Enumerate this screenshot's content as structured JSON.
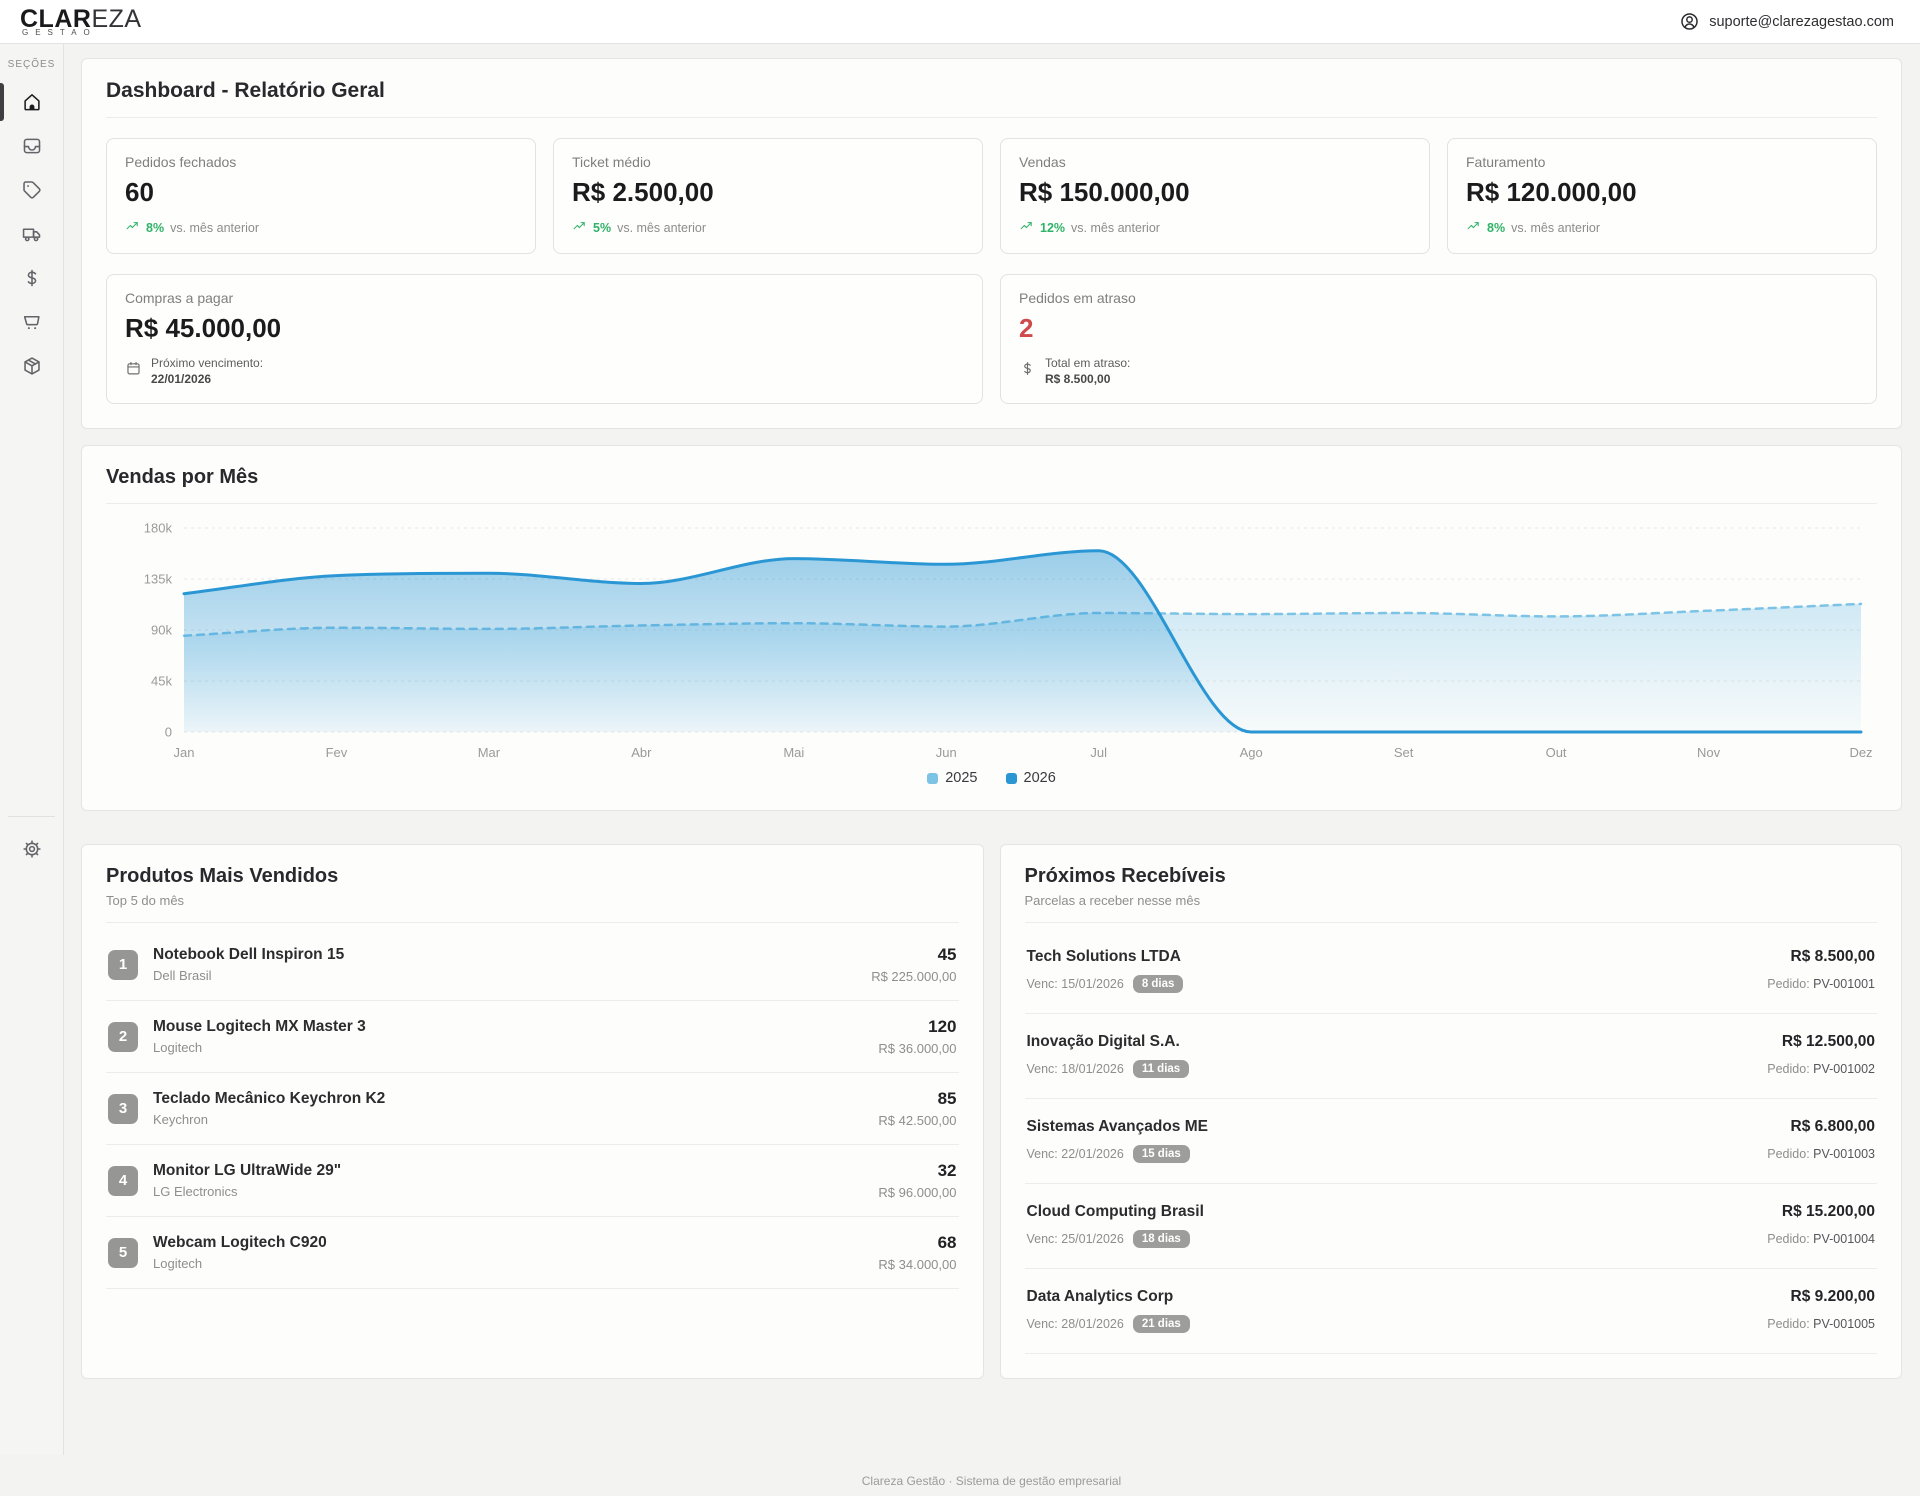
{
  "header": {
    "logo_bold": "CLAR",
    "logo_light": "EZA",
    "logo_sub": "GESTAO",
    "user_email": "suporte@clarezagestao.com"
  },
  "sidebar": {
    "section_label": "SEÇÕES",
    "items": [
      {
        "icon": "home",
        "active": true
      },
      {
        "icon": "inbox",
        "active": false
      },
      {
        "icon": "tag",
        "active": false
      },
      {
        "icon": "truck",
        "active": false
      },
      {
        "icon": "dollar",
        "active": false
      },
      {
        "icon": "cart",
        "active": false
      },
      {
        "icon": "package",
        "active": false
      }
    ],
    "footer_icon": "gear"
  },
  "page": {
    "title": "Dashboard - Relatório Geral"
  },
  "stats": [
    {
      "label": "Pedidos fechados",
      "value": "60",
      "trend_value": "8%",
      "trend_label": "vs. mês anterior"
    },
    {
      "label": "Ticket médio",
      "value": "R$ 2.500,00",
      "trend_value": "5%",
      "trend_label": "vs. mês anterior"
    },
    {
      "label": "Vendas",
      "value": "R$ 150.000,00",
      "trend_value": "12%",
      "trend_label": "vs. mês anterior"
    },
    {
      "label": "Faturamento",
      "value": "R$ 120.000,00",
      "trend_value": "8%",
      "trend_label": "vs. mês anterior"
    }
  ],
  "stats_secondary": [
    {
      "label": "Compras a pagar",
      "value": "R$ 45.000,00",
      "accent": "dark",
      "icon": "calendar",
      "info_label": "Próximo vencimento:",
      "info_value": "22/01/2026"
    },
    {
      "label": "Pedidos em atraso",
      "value": "2",
      "accent": "red",
      "icon": "dollar",
      "info_label": "Total em atraso:",
      "info_value": "R$ 8.500,00"
    }
  ],
  "chart_data": {
    "type": "area",
    "title": "Vendas por Mês",
    "categories": [
      "Jan",
      "Fev",
      "Mar",
      "Abr",
      "Mai",
      "Jun",
      "Jul",
      "Ago",
      "Set",
      "Out",
      "Nov",
      "Dez"
    ],
    "series": [
      {
        "name": "2025",
        "style": "dashed",
        "color": "#7cc3e6",
        "values": [
          85000,
          92000,
          91000,
          94000,
          96000,
          93000,
          105000,
          104000,
          105000,
          102000,
          107000,
          113000
        ]
      },
      {
        "name": "2026",
        "style": "solid",
        "color": "#2a97d4",
        "values": [
          122000,
          138000,
          140000,
          131000,
          153000,
          148000,
          160000,
          0,
          0,
          0,
          0,
          0
        ]
      }
    ],
    "ylim": [
      0,
      180000
    ],
    "yticks": [
      0,
      45000,
      90000,
      135000,
      180000
    ],
    "ytick_labels": [
      "0",
      "45k",
      "90k",
      "135k",
      "180k"
    ],
    "grid": true,
    "legend_position": "bottom"
  },
  "products": {
    "title": "Produtos Mais Vendidos",
    "subtitle": "Top 5 do mês",
    "items": [
      {
        "rank": "1",
        "name": "Notebook Dell Inspiron 15",
        "brand": "Dell Brasil",
        "quantity": "45",
        "total": "R$ 225.000,00"
      },
      {
        "rank": "2",
        "name": "Mouse Logitech MX Master 3",
        "brand": "Logitech",
        "quantity": "120",
        "total": "R$ 36.000,00"
      },
      {
        "rank": "3",
        "name": "Teclado Mecânico Keychron K2",
        "brand": "Keychron",
        "quantity": "85",
        "total": "R$ 42.500,00"
      },
      {
        "rank": "4",
        "name": "Monitor LG UltraWide 29\"",
        "brand": "LG Electronics",
        "quantity": "32",
        "total": "R$ 96.000,00"
      },
      {
        "rank": "5",
        "name": "Webcam Logitech C920",
        "brand": "Logitech",
        "quantity": "68",
        "total": "R$ 34.000,00"
      }
    ]
  },
  "receivables": {
    "title": "Próximos Recebíveis",
    "subtitle": "Parcelas a receber nesse mês",
    "items": [
      {
        "client": "Tech Solutions LTDA",
        "due_label": "Venc:",
        "due_date": "15/01/2026",
        "days_badge": "8 dias",
        "amount": "R$ 8.500,00",
        "order_label": "Pedido:",
        "order_id": "PV-001001"
      },
      {
        "client": "Inovação Digital S.A.",
        "due_label": "Venc:",
        "due_date": "18/01/2026",
        "days_badge": "11 dias",
        "amount": "R$ 12.500,00",
        "order_label": "Pedido:",
        "order_id": "PV-001002"
      },
      {
        "client": "Sistemas Avançados ME",
        "due_label": "Venc:",
        "due_date": "22/01/2026",
        "days_badge": "15 dias",
        "amount": "R$ 6.800,00",
        "order_label": "Pedido:",
        "order_id": "PV-001003"
      },
      {
        "client": "Cloud Computing Brasil",
        "due_label": "Venc:",
        "due_date": "25/01/2026",
        "days_badge": "18 dias",
        "amount": "R$ 15.200,00",
        "order_label": "Pedido:",
        "order_id": "PV-001004"
      },
      {
        "client": "Data Analytics Corp",
        "due_label": "Venc:",
        "due_date": "28/01/2026",
        "days_badge": "21 dias",
        "amount": "R$ 9.200,00",
        "order_label": "Pedido:",
        "order_id": "PV-001005"
      }
    ]
  },
  "footer": {
    "text": "Clareza Gestão · Sistema de gestão empresarial"
  },
  "colors": {
    "accent_green": "#2fb368",
    "accent_red": "#cf4a4a",
    "chart_2025": "#7cc3e6",
    "chart_2026": "#2a97d4",
    "badge_gray": "#9d9d9b"
  }
}
